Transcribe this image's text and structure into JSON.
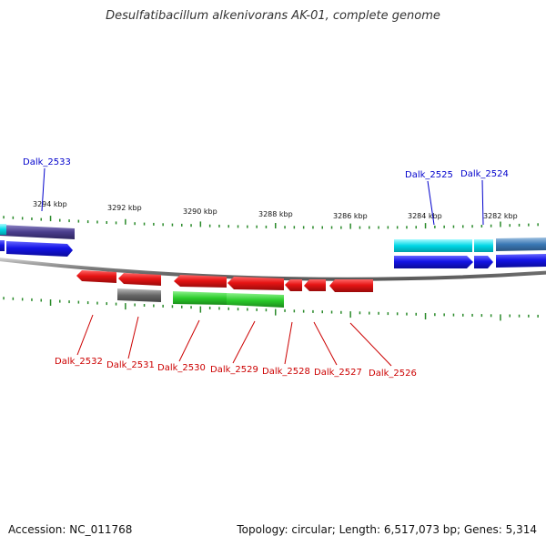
{
  "title": "Desulfatibacillum alkenivorans AK-01, complete genome",
  "footer": {
    "accession": "Accession: NC_011768",
    "topology": "Topology: circular; Length: 6,517,073 bp; Genes: 5,314"
  },
  "scale": {
    "kbp_labels": [
      {
        "id": "3294",
        "text": "3294 kbp"
      },
      {
        "id": "3292",
        "text": "3292 kbp"
      },
      {
        "id": "3290",
        "text": "3290 kbp"
      },
      {
        "id": "3288",
        "text": "3288 kbp"
      },
      {
        "id": "3286",
        "text": "3286 kbp"
      },
      {
        "id": "3284",
        "text": "3284 kbp"
      },
      {
        "id": "3282",
        "text": "3282 kbp"
      }
    ]
  },
  "colors": {
    "forward_cds": "#1414e6",
    "reverse_cds": "#e61414",
    "rna_or_other": "#00d8e6",
    "green_track": "#2bcc2b",
    "gray_track": "#666666",
    "purple_track": "#4a3d8c",
    "tick": "#2a8a2a",
    "upper_label": "#0000cc",
    "lower_label": "#cc0000"
  },
  "gene_labels_upper": [
    {
      "id": "2533",
      "text": "Dalk_2533"
    },
    {
      "id": "2525",
      "text": "Dalk_2525"
    },
    {
      "id": "2524",
      "text": "Dalk_2524"
    }
  ],
  "gene_labels_lower": [
    {
      "id": "2532",
      "text": "Dalk_2532"
    },
    {
      "id": "2531",
      "text": "Dalk_2531"
    },
    {
      "id": "2530",
      "text": "Dalk_2530"
    },
    {
      "id": "2529",
      "text": "Dalk_2529"
    },
    {
      "id": "2528",
      "text": "Dalk_2528"
    },
    {
      "id": "2527",
      "text": "Dalk_2527"
    },
    {
      "id": "2526",
      "text": "Dalk_2526"
    }
  ]
}
